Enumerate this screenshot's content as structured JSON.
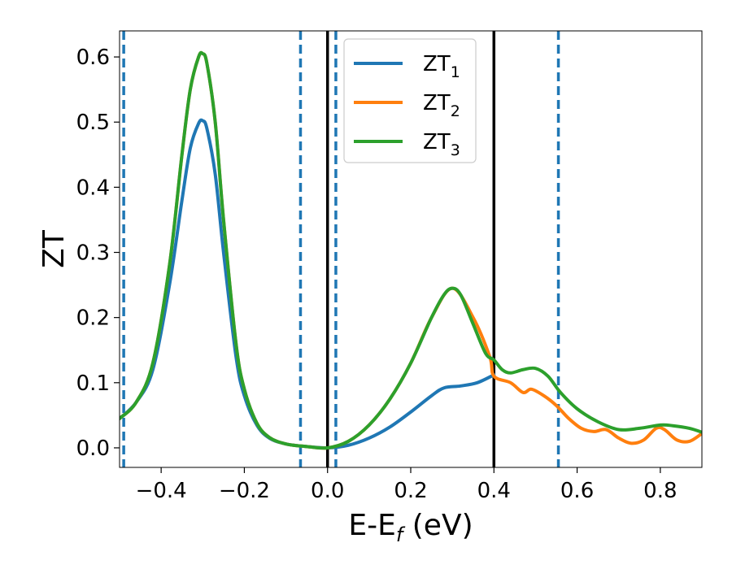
{
  "chart_data": {
    "type": "line",
    "xlabel": "E-E",
    "xlabel_sub": "f",
    "xlabel_unit": " (eV)",
    "ylabel": "ZT",
    "xlim": [
      -0.5,
      0.9
    ],
    "ylim": [
      -0.03,
      0.64
    ],
    "x_ticks": [
      -0.4,
      -0.2,
      0.0,
      0.2,
      0.4,
      0.6,
      0.8
    ],
    "x_tick_labels": [
      "−0.4",
      "−0.2",
      "0.0",
      "0.2",
      "0.4",
      "0.6",
      "0.8"
    ],
    "y_ticks": [
      0.0,
      0.1,
      0.2,
      0.3,
      0.4,
      0.5,
      0.6
    ],
    "y_tick_labels": [
      "0.0",
      "0.1",
      "0.2",
      "0.3",
      "0.4",
      "0.5",
      "0.6"
    ],
    "grid": false,
    "legend_position": "top-center",
    "vlines_dashed": [
      -0.49,
      -0.065,
      0.02,
      0.555
    ],
    "vlines_solid": [
      0.0,
      0.4
    ],
    "vline_dashed_color": "#1f77b4",
    "vline_solid_color": "#000000",
    "series": [
      {
        "name": "ZT",
        "sub": "1",
        "color": "#1f77b4",
        "x": [
          -0.5,
          -0.46,
          -0.42,
          -0.38,
          -0.35,
          -0.33,
          -0.31,
          -0.3,
          -0.29,
          -0.27,
          -0.25,
          -0.22,
          -0.2,
          -0.17,
          -0.14,
          -0.1,
          -0.05,
          0.0,
          0.05,
          0.1,
          0.15,
          0.2,
          0.25,
          0.28,
          0.32,
          0.36,
          0.4
        ],
        "values": [
          0.045,
          0.07,
          0.12,
          0.25,
          0.38,
          0.46,
          0.498,
          0.502,
          0.49,
          0.42,
          0.3,
          0.14,
          0.08,
          0.035,
          0.015,
          0.006,
          0.002,
          0.0,
          0.004,
          0.015,
          0.032,
          0.055,
          0.08,
          0.092,
          0.095,
          0.1,
          0.112
        ]
      },
      {
        "name": "ZT",
        "sub": "2",
        "color": "#ff7f0e",
        "x": [
          -0.5,
          -0.46,
          -0.42,
          -0.38,
          -0.35,
          -0.33,
          -0.31,
          -0.3,
          -0.29,
          -0.27,
          -0.25,
          -0.22,
          -0.2,
          -0.17,
          -0.14,
          -0.1,
          -0.05,
          0.0,
          0.05,
          0.1,
          0.15,
          0.2,
          0.25,
          0.3,
          0.35,
          0.39,
          0.4,
          0.44,
          0.47,
          0.49,
          0.52,
          0.55,
          0.58,
          0.61,
          0.64,
          0.67,
          0.7,
          0.73,
          0.76,
          0.79,
          0.81,
          0.84,
          0.87,
          0.9
        ],
        "values": [
          0.045,
          0.07,
          0.13,
          0.28,
          0.45,
          0.55,
          0.6,
          0.605,
          0.59,
          0.5,
          0.35,
          0.16,
          0.09,
          0.038,
          0.016,
          0.006,
          0.002,
          0.0,
          0.01,
          0.035,
          0.075,
          0.13,
          0.2,
          0.245,
          0.2,
          0.14,
          0.11,
          0.1,
          0.085,
          0.09,
          0.08,
          0.065,
          0.045,
          0.03,
          0.025,
          0.028,
          0.015,
          0.007,
          0.012,
          0.03,
          0.028,
          0.012,
          0.01,
          0.022
        ]
      },
      {
        "name": "ZT",
        "sub": "3",
        "color": "#2ca02c",
        "x": [
          -0.5,
          -0.46,
          -0.42,
          -0.38,
          -0.35,
          -0.33,
          -0.31,
          -0.3,
          -0.29,
          -0.27,
          -0.25,
          -0.22,
          -0.2,
          -0.17,
          -0.14,
          -0.1,
          -0.05,
          0.0,
          0.05,
          0.1,
          0.15,
          0.2,
          0.25,
          0.28,
          0.3,
          0.32,
          0.35,
          0.38,
          0.4,
          0.42,
          0.44,
          0.47,
          0.5,
          0.53,
          0.56,
          0.6,
          0.65,
          0.7,
          0.75,
          0.8,
          0.83,
          0.87,
          0.9
        ],
        "values": [
          0.045,
          0.07,
          0.13,
          0.28,
          0.45,
          0.55,
          0.6,
          0.605,
          0.59,
          0.5,
          0.35,
          0.16,
          0.09,
          0.038,
          0.016,
          0.006,
          0.002,
          0.0,
          0.01,
          0.035,
          0.075,
          0.13,
          0.2,
          0.235,
          0.245,
          0.235,
          0.19,
          0.145,
          0.135,
          0.12,
          0.115,
          0.12,
          0.122,
          0.11,
          0.085,
          0.06,
          0.04,
          0.028,
          0.03,
          0.035,
          0.034,
          0.03,
          0.024
        ]
      }
    ]
  }
}
